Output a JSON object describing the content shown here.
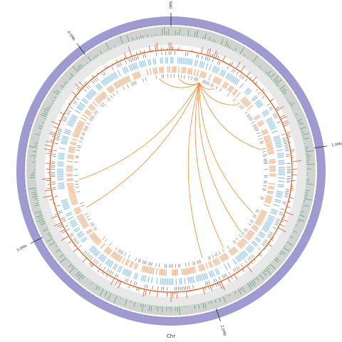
{
  "chart_data": {
    "type": "circos",
    "axis_label": "Chr",
    "genome_length": 4.45,
    "xticks": [
      {
        "value": 0,
        "label": "0Mb"
      },
      {
        "value": 1,
        "label": "1.0Mb"
      },
      {
        "value": 2,
        "label": "2.0Mb"
      },
      {
        "value": 3,
        "label": "3.0Mb"
      },
      {
        "value": 4,
        "label": "4.0Mb"
      }
    ],
    "link_color": "#f28a2e",
    "links": [
      {
        "start": 0.22,
        "end": 4.36
      },
      {
        "start": 0.22,
        "end": 0.06
      },
      {
        "start": 0.22,
        "end": 0.55
      },
      {
        "start": 0.22,
        "end": 0.95
      },
      {
        "start": 0.22,
        "end": 3.27
      },
      {
        "start": 0.22,
        "end": 3.05
      },
      {
        "start": 0.22,
        "end": 1.45
      },
      {
        "start": 0.22,
        "end": 1.62
      },
      {
        "start": 0.22,
        "end": 1.8
      },
      {
        "start": 0.22,
        "end": 1.98
      },
      {
        "start": 0.22,
        "end": 0.34
      }
    ]
  }
}
